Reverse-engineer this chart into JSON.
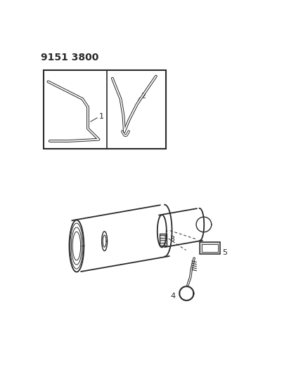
{
  "title_text": "9151 3800",
  "background_color": "#ffffff",
  "line_color": "#2a2a2a",
  "figsize": [
    4.11,
    5.33
  ],
  "dpi": 100,
  "label1": "1",
  "label2": "2",
  "label3": "3",
  "label4": "4",
  "label5": "5"
}
